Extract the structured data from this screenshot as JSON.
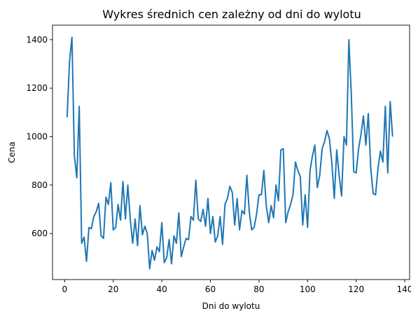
{
  "chart_data": {
    "type": "line",
    "title": "Wykres średnich cen zależny od dni do wylotu",
    "xlabel": "Dni do wylotu",
    "ylabel": "Cena",
    "xlim": [
      -5,
      142
    ],
    "ylim": [
      410,
      1460
    ],
    "xticks": [
      0,
      20,
      40,
      60,
      80,
      100,
      120,
      140
    ],
    "yticks": [
      600,
      800,
      1000,
      1200,
      1400
    ],
    "grid": false,
    "line_color": "#1f77b4",
    "series": [
      {
        "x": [
          1,
          2,
          3,
          4,
          5,
          6,
          7,
          8,
          9,
          10,
          11,
          12,
          13,
          14,
          15,
          16,
          17,
          18,
          19,
          20,
          21,
          22,
          23,
          24,
          25,
          26,
          27,
          28,
          29,
          30,
          31,
          32,
          33,
          34,
          35,
          36,
          37,
          38,
          39,
          40,
          41,
          42,
          43,
          44,
          45,
          46,
          47,
          48,
          49,
          50,
          51,
          52,
          53,
          54,
          55,
          56,
          57,
          58,
          59,
          60,
          61,
          62,
          63,
          64,
          65,
          66,
          67,
          68,
          69,
          70,
          71,
          72,
          73,
          74,
          75,
          76,
          77,
          78,
          79,
          80,
          81,
          82,
          83,
          84,
          85,
          86,
          87,
          88,
          89,
          90,
          91,
          92,
          93,
          94,
          95,
          96,
          97,
          98,
          99,
          100,
          101,
          102,
          103,
          104,
          105,
          106,
          107,
          108,
          109,
          110,
          111,
          112,
          113,
          114,
          115,
          116,
          117,
          118,
          119,
          120,
          121,
          122,
          123,
          124,
          125,
          126,
          127,
          128,
          129,
          130,
          131,
          132,
          133,
          134,
          135
        ],
        "values": [
          1080,
          1310,
          1410,
          920,
          830,
          1125,
          560,
          585,
          485,
          625,
          620,
          670,
          690,
          725,
          590,
          580,
          750,
          720,
          810,
          615,
          625,
          720,
          655,
          815,
          660,
          800,
          660,
          560,
          660,
          550,
          715,
          595,
          630,
          600,
          455,
          530,
          490,
          545,
          525,
          645,
          480,
          500,
          575,
          475,
          590,
          560,
          685,
          505,
          545,
          580,
          575,
          670,
          655,
          820,
          660,
          650,
          700,
          630,
          745,
          600,
          670,
          565,
          590,
          670,
          555,
          720,
          745,
          795,
          770,
          635,
          745,
          615,
          695,
          680,
          840,
          690,
          615,
          625,
          680,
          760,
          760,
          860,
          715,
          645,
          715,
          665,
          800,
          735,
          945,
          950,
          645,
          690,
          720,
          760,
          895,
          860,
          835,
          635,
          760,
          625,
          860,
          920,
          965,
          790,
          840,
          950,
          980,
          1025,
          990,
          890,
          745,
          945,
          840,
          755,
          1000,
          965,
          1400,
          1175,
          855,
          850,
          950,
          1010,
          1085,
          965,
          1095,
          870,
          765,
          760,
          870,
          940,
          895,
          1125,
          850,
          1145,
          1000
        ]
      }
    ]
  }
}
